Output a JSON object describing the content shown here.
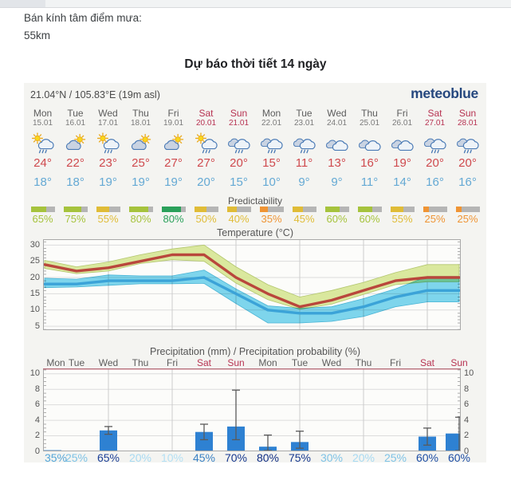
{
  "page": {
    "info_label": "Bán kính tâm điểm mưa:",
    "info_value": "55km",
    "title": "Dự báo thời tiết 14 ngày"
  },
  "widget": {
    "location": "21.04°N / 105.83°E (19m asl)",
    "logo": "meteoblue",
    "predictability_label": "Predictability",
    "accent_colors": {
      "temp_max_text": "#cf4a4e",
      "temp_min_text": "#64a9d4",
      "weekend_text": "#b73352",
      "logo_blue": "#25477e"
    },
    "days": [
      {
        "abbr": "Mon",
        "date": "15.01",
        "weekend": false,
        "icon": "sun-cloud-rain",
        "tmax": "24°",
        "tmin": "18°",
        "pred": {
          "label": "65%",
          "value": 65,
          "color": "#a6c33d"
        },
        "prob": {
          "label": "35%",
          "color": "#55a6d8"
        }
      },
      {
        "abbr": "Tue",
        "date": "16.01",
        "weekend": false,
        "icon": "sun-cloud",
        "tmax": "22°",
        "tmin": "18°",
        "pred": {
          "label": "75%",
          "value": 75,
          "color": "#a6c33d"
        },
        "prob": {
          "label": "25%",
          "color": "#7fc3e6"
        }
      },
      {
        "abbr": "Wed",
        "date": "17.01",
        "weekend": false,
        "icon": "sun-cloud-rain",
        "tmax": "23°",
        "tmin": "19°",
        "pred": {
          "label": "55%",
          "value": 55,
          "color": "#e0bc37"
        },
        "prob": {
          "label": "65%",
          "color": "#1b3f96"
        }
      },
      {
        "abbr": "Thu",
        "date": "18.01",
        "weekend": false,
        "icon": "sun-cloud",
        "tmax": "25°",
        "tmin": "19°",
        "pred": {
          "label": "80%",
          "value": 80,
          "color": "#a6c33d"
        },
        "prob": {
          "label": "20%",
          "color": "#a8daf2"
        }
      },
      {
        "abbr": "Fri",
        "date": "19.01",
        "weekend": false,
        "icon": "sun-cloud",
        "tmax": "27°",
        "tmin": "19°",
        "pred": {
          "label": "80%",
          "value": 80,
          "color": "#2aa05a"
        },
        "prob": {
          "label": "10%",
          "color": "#b4e0f4"
        }
      },
      {
        "abbr": "Sat",
        "date": "20.01",
        "weekend": true,
        "icon": "sun-cloud-rain",
        "tmax": "27°",
        "tmin": "20°",
        "pred": {
          "label": "50%",
          "value": 50,
          "color": "#e0bc37"
        },
        "prob": {
          "label": "45%",
          "color": "#3c82c4"
        }
      },
      {
        "abbr": "Sun",
        "date": "21.01",
        "weekend": true,
        "icon": "cloud-rain",
        "tmax": "20°",
        "tmin": "15°",
        "pred": {
          "label": "40%",
          "value": 40,
          "color": "#e0bc37"
        },
        "prob": {
          "label": "70%",
          "color": "#16388f"
        }
      },
      {
        "abbr": "Mon",
        "date": "22.01",
        "weekend": false,
        "icon": "cloud-rain",
        "tmax": "15°",
        "tmin": "10°",
        "pred": {
          "label": "35%",
          "value": 35,
          "color": "#ef9434"
        },
        "prob": {
          "label": "80%",
          "color": "#112e84"
        }
      },
      {
        "abbr": "Tue",
        "date": "23.01",
        "weekend": false,
        "icon": "cloud-rain",
        "tmax": "11°",
        "tmin": "9°",
        "pred": {
          "label": "45%",
          "value": 45,
          "color": "#e0bc37"
        },
        "prob": {
          "label": "75%",
          "color": "#16388f"
        }
      },
      {
        "abbr": "Wed",
        "date": "24.01",
        "weekend": false,
        "icon": "cloudy",
        "tmax": "13°",
        "tmin": "9°",
        "pred": {
          "label": "60%",
          "value": 60,
          "color": "#a6c33d"
        },
        "prob": {
          "label": "30%",
          "color": "#7fc3e6"
        }
      },
      {
        "abbr": "Thu",
        "date": "25.01",
        "weekend": false,
        "icon": "cloudy",
        "tmax": "16°",
        "tmin": "11°",
        "pred": {
          "label": "60%",
          "value": 60,
          "color": "#a6c33d"
        },
        "prob": {
          "label": "20%",
          "color": "#a8daf2"
        }
      },
      {
        "abbr": "Fri",
        "date": "26.01",
        "weekend": false,
        "icon": "cloudy",
        "tmax": "19°",
        "tmin": "14°",
        "pred": {
          "label": "55%",
          "value": 55,
          "color": "#e0bc37"
        },
        "prob": {
          "label": "25%",
          "color": "#7fc3e6"
        }
      },
      {
        "abbr": "Sat",
        "date": "27.01",
        "weekend": true,
        "icon": "cloud-rain",
        "tmax": "20°",
        "tmin": "16°",
        "pred": {
          "label": "25%",
          "value": 25,
          "color": "#ef9434"
        },
        "prob": {
          "label": "60%",
          "color": "#1d4da4"
        }
      },
      {
        "abbr": "Sun",
        "date": "28.01",
        "weekend": true,
        "icon": "cloud-rain",
        "tmax": "20°",
        "tmin": "16°",
        "pred": {
          "label": "25%",
          "value": 25,
          "color": "#ef9434"
        },
        "prob": {
          "label": "60%",
          "color": "#1d4da4"
        }
      }
    ]
  },
  "chart_data": [
    {
      "type": "line",
      "title": "Temperature (°C)",
      "x_categories": [
        "Mon 15.01",
        "Tue 16.01",
        "Wed 17.01",
        "Thu 18.01",
        "Fri 19.01",
        "Sat 20.01",
        "Sun 21.01",
        "Mon 22.01",
        "Tue 23.01",
        "Wed 24.01",
        "Thu 25.01",
        "Fri 26.01",
        "Sat 27.01",
        "Sun 28.01"
      ],
      "yticks": [
        5,
        10,
        15,
        20,
        25,
        30
      ],
      "ylim": [
        3.8,
        31.8
      ],
      "grid": true,
      "vgrid_every_days": 2,
      "series": [
        {
          "name": "temperature-max",
          "color": "#b9473c",
          "values": [
            24,
            22,
            23,
            25,
            27,
            27,
            20,
            15,
            11,
            13,
            16,
            19,
            20,
            20
          ]
        },
        {
          "name": "temperature-min",
          "color": "#3ba3d8",
          "values": [
            18,
            18,
            19,
            19,
            19,
            20,
            15,
            10,
            9,
            9,
            11,
            14,
            16,
            16
          ]
        },
        {
          "name": "max-range-high",
          "color": "#d6e594",
          "values": [
            25.3,
            23.3,
            24.8,
            27,
            28.8,
            30,
            23.3,
            17.8,
            14,
            16,
            18.5,
            21.5,
            24,
            24
          ]
        },
        {
          "name": "max-range-low",
          "color": "#d6e594",
          "values": [
            22.8,
            21.2,
            22,
            24.3,
            25.5,
            25,
            18.3,
            13.2,
            10.2,
            11.8,
            14.8,
            17.8,
            18.7,
            18.7
          ]
        },
        {
          "name": "min-range-high",
          "color": "#72d4ef",
          "values": [
            19.8,
            19.5,
            20.8,
            20.5,
            20.5,
            22.3,
            16.5,
            11.3,
            10.5,
            11,
            13.5,
            16.5,
            20.3,
            20.3
          ]
        },
        {
          "name": "min-range-low",
          "color": "#72d4ef",
          "values": [
            16.9,
            17.1,
            17.6,
            18.1,
            18.1,
            18.2,
            12,
            6,
            6,
            6.5,
            8,
            11,
            12.5,
            12.5
          ]
        }
      ]
    },
    {
      "type": "bar",
      "title": "Precipitation (mm) / Precipitation probability (%)",
      "categories": [
        "Mon",
        "Tue",
        "Wed",
        "Thu",
        "Fri",
        "Sat",
        "Sun",
        "Mon",
        "Tue",
        "Wed",
        "Thu",
        "Fri",
        "Sat",
        "Sun"
      ],
      "weekend_flags": [
        false,
        false,
        false,
        false,
        false,
        true,
        true,
        false,
        false,
        false,
        false,
        false,
        true,
        true
      ],
      "values": [
        0.15,
        0,
        2.7,
        0,
        0,
        2.5,
        3.2,
        0.6,
        1.2,
        0,
        0,
        0,
        1.9,
        2.3
      ],
      "whisker_low": [
        null,
        null,
        2.2,
        null,
        null,
        1.5,
        1.5,
        0.1,
        0.4,
        null,
        null,
        null,
        0.8,
        0.1
      ],
      "whisker_high": [
        null,
        null,
        3.2,
        null,
        null,
        3.5,
        7.9,
        2.1,
        2.6,
        null,
        null,
        null,
        3.0,
        4.4
      ],
      "probabilities": [
        "35%",
        "25%",
        "65%",
        "20%",
        "10%",
        "45%",
        "70%",
        "80%",
        "75%",
        "30%",
        "20%",
        "25%",
        "60%",
        "60%"
      ],
      "bar_color": "#2e81d2",
      "yticks": [
        0,
        2,
        4,
        6,
        8,
        10
      ],
      "ylim": [
        0,
        10.7
      ]
    }
  ]
}
